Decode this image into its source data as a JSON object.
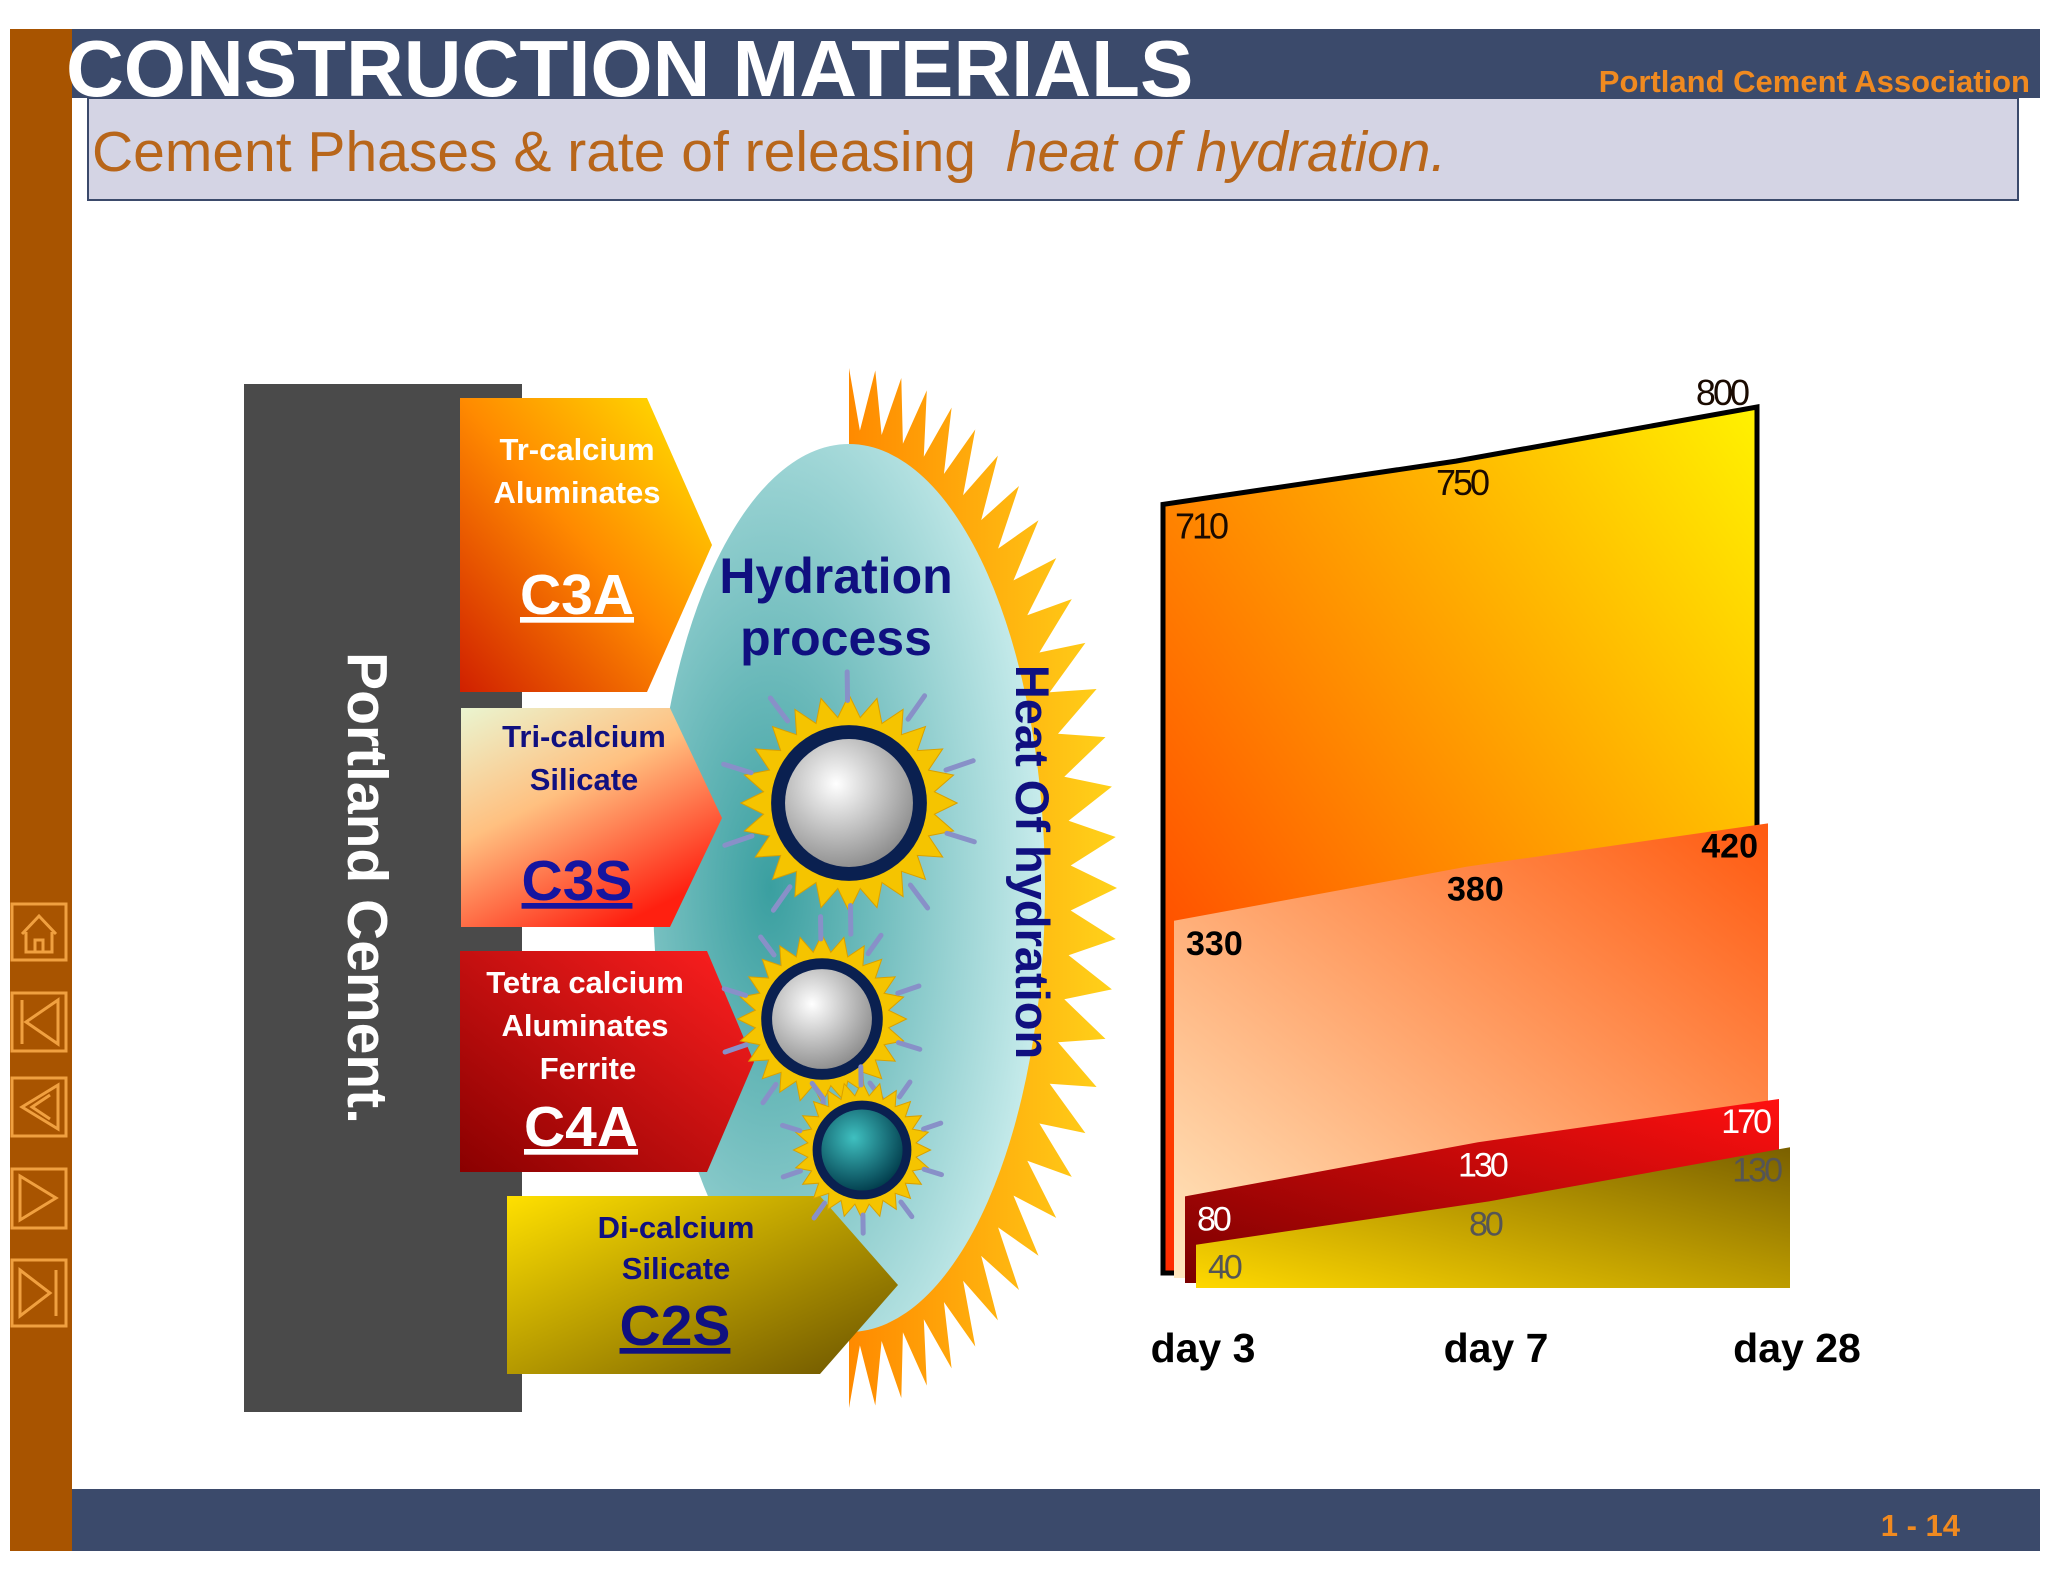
{
  "header": {
    "title": "CONSTRUCTION MATERIALS",
    "organization": "Portland Cement Association",
    "subtitle": "Cement Phases & rate of releasing ",
    "subtitle_emphasis": "heat of hydration."
  },
  "diagram": {
    "cement_label": "Portland Cement.",
    "process_label": [
      "Hydration",
      "process"
    ],
    "heat_label": "Heat Of hydration",
    "phases": [
      {
        "lines": [
          "Tr-calcium",
          "Aluminates"
        ],
        "code": "C3A"
      },
      {
        "lines": [
          "Tri-calcium",
          "Silicate"
        ],
        "code": "C3S"
      },
      {
        "lines": [
          "Tetra calcium",
          "Aluminates",
          "Ferrite"
        ],
        "code": "C4A"
      },
      {
        "lines": [
          "Di-calcium",
          "Silicate"
        ],
        "code": "C2S"
      }
    ]
  },
  "chart_data": {
    "type": "area",
    "categories": [
      "day 3",
      "day 7",
      "day 28"
    ],
    "series": [
      {
        "color": "#ff2a00",
        "color_end": "#fff200",
        "values": [
          710,
          750,
          800
        ]
      },
      {
        "color": "#ffe8c0",
        "color_end": "#ff5a10",
        "values": [
          330,
          380,
          420
        ]
      },
      {
        "color": "#7a0000",
        "color_end": "#ff1010",
        "values": [
          80,
          130,
          170
        ]
      },
      {
        "color": "#ffd800",
        "color_end": "#7a6000",
        "values": [
          40,
          80,
          130
        ]
      }
    ]
  },
  "footer": {
    "page": "1 - 14"
  }
}
